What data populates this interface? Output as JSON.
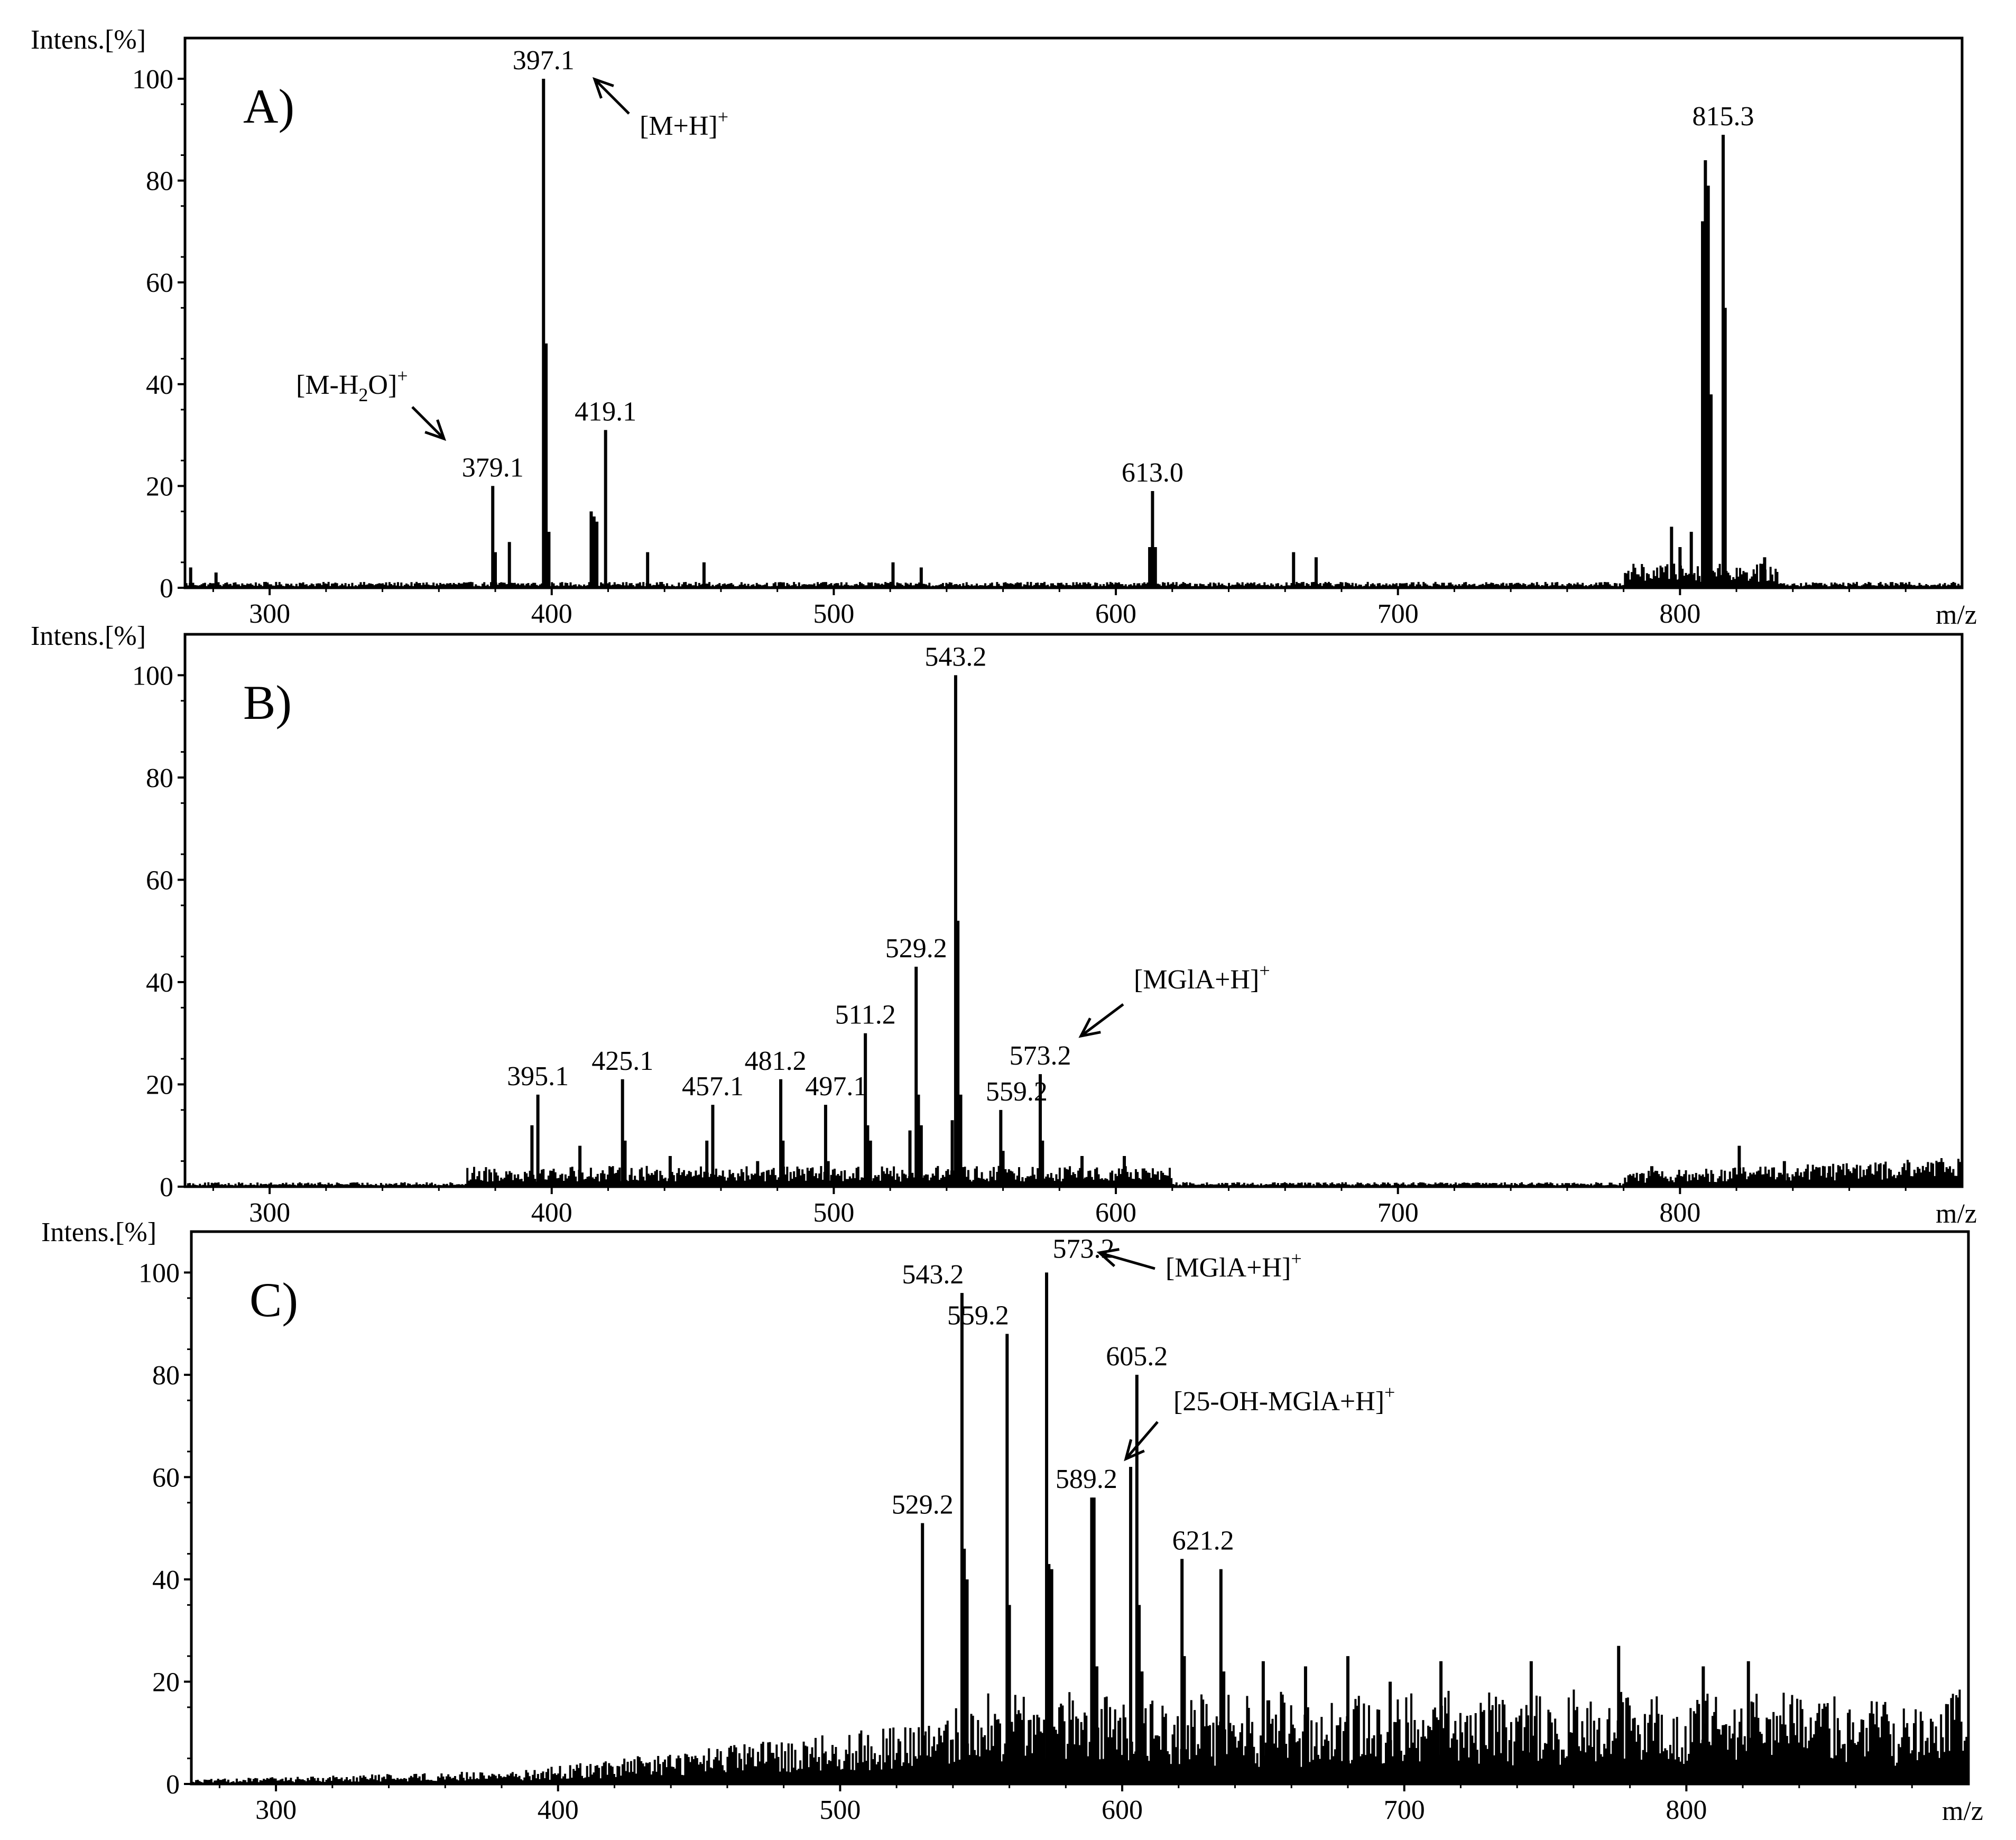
{
  "chart_data": [
    {
      "type": "bar",
      "panel": "A)",
      "ylabel": "Intens.[%]",
      "xlabel": "m/z",
      "xlim": [
        270,
        900
      ],
      "ylim": [
        0,
        108
      ],
      "xticks": [
        300,
        400,
        500,
        600,
        700,
        800
      ],
      "yticks": [
        0,
        20,
        40,
        60,
        80,
        100
      ],
      "peaks": [
        {
          "mz": 379.1,
          "intensity": 20,
          "label": "379.1"
        },
        {
          "mz": 397.1,
          "intensity": 100,
          "label": "397.1"
        },
        {
          "mz": 419.1,
          "intensity": 31,
          "label": "419.1"
        },
        {
          "mz": 613.0,
          "intensity": 19,
          "label": "613.0"
        },
        {
          "mz": 815.3,
          "intensity": 89,
          "label": "815.3"
        }
      ],
      "minor_peaks": [
        [
          272,
          4
        ],
        [
          281,
          3
        ],
        [
          380,
          7
        ],
        [
          385,
          9
        ],
        [
          398,
          48
        ],
        [
          399,
          11
        ],
        [
          414,
          15
        ],
        [
          415,
          14
        ],
        [
          416,
          13
        ],
        [
          434,
          7
        ],
        [
          454,
          5
        ],
        [
          521,
          5
        ],
        [
          531,
          4
        ],
        [
          612,
          8
        ],
        [
          614,
          8
        ],
        [
          663,
          7
        ],
        [
          671,
          6
        ],
        [
          797,
          12
        ],
        [
          800,
          8
        ],
        [
          804,
          11
        ],
        [
          808,
          72
        ],
        [
          809,
          84
        ],
        [
          810,
          79
        ],
        [
          811,
          38
        ],
        [
          816,
          55
        ],
        [
          830,
          6
        ]
      ],
      "annotations": [
        {
          "text": "[M+H]",
          "sup": "+",
          "target_mz": 397.1
        },
        {
          "text": "[M-H",
          "sub": "2",
          "text2": "O]",
          "sup": "+",
          "target_mz": 379.1
        }
      ]
    },
    {
      "type": "bar",
      "panel": "B)",
      "ylabel": "Intens.[%]",
      "xlabel": "m/z",
      "xlim": [
        270,
        900
      ],
      "ylim": [
        0,
        108
      ],
      "xticks": [
        300,
        400,
        500,
        600,
        700,
        800
      ],
      "yticks": [
        0,
        20,
        40,
        60,
        80,
        100
      ],
      "peaks": [
        {
          "mz": 395.1,
          "intensity": 18,
          "label": "395.1"
        },
        {
          "mz": 425.1,
          "intensity": 21,
          "label": "425.1"
        },
        {
          "mz": 457.1,
          "intensity": 16,
          "label": "457.1"
        },
        {
          "mz": 481.2,
          "intensity": 21,
          "label": "481.2"
        },
        {
          "mz": 497.1,
          "intensity": 16,
          "label": "497.1"
        },
        {
          "mz": 511.2,
          "intensity": 30,
          "label": "511.2"
        },
        {
          "mz": 529.2,
          "intensity": 43,
          "label": "529.2"
        },
        {
          "mz": 543.2,
          "intensity": 100,
          "label": "543.2"
        },
        {
          "mz": 559.2,
          "intensity": 15,
          "label": "559.2"
        },
        {
          "mz": 573.2,
          "intensity": 22,
          "label": "573.2"
        }
      ],
      "minor_peaks": [
        [
          393,
          12
        ],
        [
          410,
          8
        ],
        [
          426,
          9
        ],
        [
          442,
          6
        ],
        [
          455,
          9
        ],
        [
          473,
          5
        ],
        [
          482,
          9
        ],
        [
          498,
          5
        ],
        [
          512,
          12
        ],
        [
          513,
          9
        ],
        [
          527,
          11
        ],
        [
          530,
          18
        ],
        [
          531,
          12
        ],
        [
          542,
          13
        ],
        [
          544,
          52
        ],
        [
          545,
          18
        ],
        [
          560,
          7
        ],
        [
          574,
          9
        ],
        [
          588,
          6
        ],
        [
          603,
          6
        ],
        [
          790,
          4
        ],
        [
          821,
          8
        ],
        [
          837,
          5
        ],
        [
          853,
          4
        ]
      ],
      "annotations": [
        {
          "text": "[MGlA+H]",
          "sup": "+",
          "target_mz": 573.2
        }
      ]
    },
    {
      "type": "bar",
      "panel": "C)",
      "ylabel": "Intens.[%]",
      "xlabel": "m/z",
      "xlim": [
        270,
        900
      ],
      "ylim": [
        0,
        108
      ],
      "xticks": [
        300,
        400,
        500,
        600,
        700,
        800
      ],
      "yticks": [
        0,
        20,
        40,
        60,
        80,
        100
      ],
      "peaks": [
        {
          "mz": 529.2,
          "intensity": 51,
          "label": "529.2"
        },
        {
          "mz": 543.2,
          "intensity": 96,
          "label": "543.2"
        },
        {
          "mz": 559.2,
          "intensity": 88,
          "label": "559.2"
        },
        {
          "mz": 573.2,
          "intensity": 100,
          "label": "573.2"
        },
        {
          "mz": 589.2,
          "intensity": 56,
          "label": "589.2"
        },
        {
          "mz": 605.2,
          "intensity": 80,
          "label": "605.2"
        },
        {
          "mz": 621.2,
          "intensity": 44,
          "label": "621.2"
        }
      ],
      "minor_peaks": [
        [
          544,
          46
        ],
        [
          545,
          40
        ],
        [
          560,
          35
        ],
        [
          574,
          43
        ],
        [
          575,
          42
        ],
        [
          590,
          56
        ],
        [
          591,
          23
        ],
        [
          603,
          62
        ],
        [
          606,
          35
        ],
        [
          607,
          22
        ],
        [
          622,
          25
        ],
        [
          635,
          42
        ],
        [
          636,
          22
        ],
        [
          650,
          24
        ],
        [
          665,
          23
        ],
        [
          680,
          25
        ],
        [
          695,
          20
        ],
        [
          713,
          24
        ],
        [
          745,
          24
        ],
        [
          776,
          27
        ],
        [
          806,
          23
        ],
        [
          822,
          24
        ]
      ],
      "annotations": [
        {
          "text": "[MGlA+H]",
          "sup": "+",
          "target_mz": 573.2
        },
        {
          "text": "[25-OH-MGlA+H]",
          "sup": "+",
          "target_mz": 589.2
        }
      ]
    }
  ]
}
